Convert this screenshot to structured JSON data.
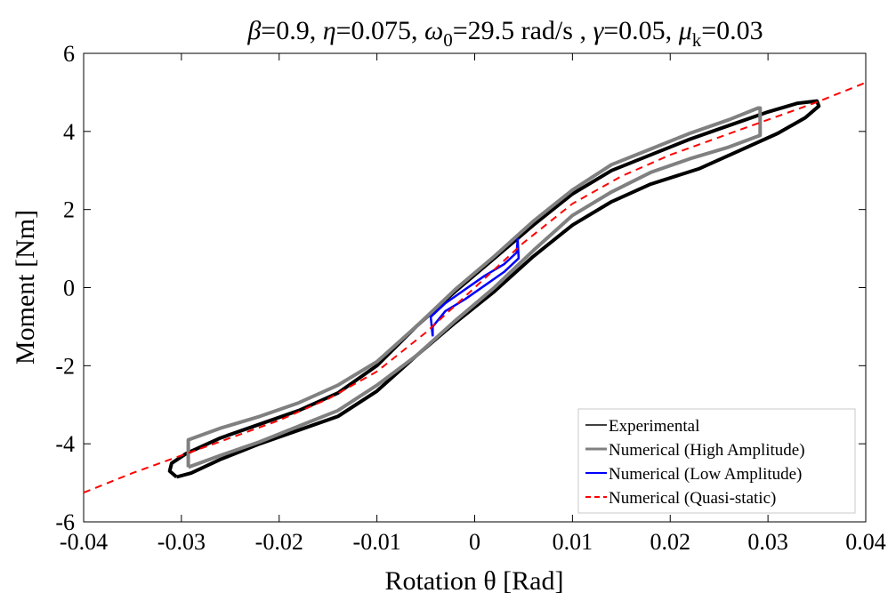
{
  "chart_data": {
    "type": "line",
    "title": "β=0.9, η=0.075, ω0=29.5 rad/s , γ=0.05, μk=0.03",
    "title_parts": [
      {
        "text": "β",
        "italic": true
      },
      {
        "text": "=0.9, "
      },
      {
        "text": "η",
        "italic": true
      },
      {
        "text": "=0.075, "
      },
      {
        "text": "ω",
        "italic": true
      },
      {
        "text": "0",
        "sub": true
      },
      {
        "text": "=29.5 rad/s , "
      },
      {
        "text": "γ",
        "italic": true
      },
      {
        "text": "=0.05, "
      },
      {
        "text": "μ",
        "italic": true
      },
      {
        "text": "k",
        "sub": true
      },
      {
        "text": "=0.03"
      }
    ],
    "xlabel": "Rotation θ [Rad]",
    "ylabel": "Moment [Nm]",
    "xlim": [
      -0.04,
      0.04
    ],
    "ylim": [
      -6,
      6
    ],
    "xticks": [
      -0.04,
      -0.03,
      -0.02,
      -0.01,
      0,
      0.01,
      0.02,
      0.03,
      0.04
    ],
    "xtick_labels": [
      "-0.04",
      "-0.03",
      "-0.02",
      "-0.01",
      "0",
      "0.01",
      "0.02",
      "0.03",
      "0.04"
    ],
    "yticks": [
      -6,
      -4,
      -2,
      0,
      2,
      4,
      6
    ],
    "ytick_labels": [
      "-6",
      "-4",
      "-2",
      "0",
      "2",
      "4",
      "6"
    ],
    "grid": false,
    "legend_position": "bottom-right",
    "series": [
      {
        "name": "Experimental",
        "color": "#000000",
        "style": "solid",
        "points": [
          [
            -0.0305,
            -4.85
          ],
          [
            -0.0312,
            -4.7
          ],
          [
            -0.031,
            -4.5
          ],
          [
            -0.0295,
            -4.25
          ],
          [
            -0.026,
            -3.85
          ],
          [
            -0.022,
            -3.5
          ],
          [
            -0.018,
            -3.15
          ],
          [
            -0.014,
            -2.7
          ],
          [
            -0.01,
            -2.0
          ],
          [
            -0.006,
            -1.0
          ],
          [
            -0.002,
            -0.1
          ],
          [
            0.002,
            0.75
          ],
          [
            0.006,
            1.6
          ],
          [
            0.01,
            2.4
          ],
          [
            0.014,
            3.0
          ],
          [
            0.018,
            3.4
          ],
          [
            0.022,
            3.8
          ],
          [
            0.026,
            4.15
          ],
          [
            0.03,
            4.5
          ],
          [
            0.033,
            4.72
          ],
          [
            0.035,
            4.78
          ],
          [
            0.0352,
            4.65
          ],
          [
            0.0338,
            4.35
          ],
          [
            0.031,
            3.95
          ],
          [
            0.027,
            3.5
          ],
          [
            0.023,
            3.05
          ],
          [
            0.018,
            2.65
          ],
          [
            0.014,
            2.2
          ],
          [
            0.01,
            1.6
          ],
          [
            0.006,
            0.8
          ],
          [
            0.002,
            -0.1
          ],
          [
            -0.002,
            -0.9
          ],
          [
            -0.006,
            -1.75
          ],
          [
            -0.01,
            -2.65
          ],
          [
            -0.014,
            -3.3
          ],
          [
            -0.018,
            -3.65
          ],
          [
            -0.022,
            -4.0
          ],
          [
            -0.026,
            -4.4
          ],
          [
            -0.029,
            -4.75
          ],
          [
            -0.0305,
            -4.85
          ]
        ]
      },
      {
        "name": "Numerical (High Amplitude)",
        "color": "#808080",
        "style": "solid",
        "points": [
          [
            -0.0293,
            -4.6
          ],
          [
            -0.0293,
            -3.9
          ],
          [
            -0.026,
            -3.6
          ],
          [
            -0.022,
            -3.3
          ],
          [
            -0.018,
            -2.95
          ],
          [
            -0.014,
            -2.5
          ],
          [
            -0.01,
            -1.9
          ],
          [
            -0.006,
            -1.0
          ],
          [
            -0.002,
            -0.05
          ],
          [
            0.002,
            0.8
          ],
          [
            0.006,
            1.7
          ],
          [
            0.01,
            2.5
          ],
          [
            0.014,
            3.15
          ],
          [
            0.018,
            3.55
          ],
          [
            0.022,
            3.95
          ],
          [
            0.026,
            4.3
          ],
          [
            0.029,
            4.6
          ],
          [
            0.0292,
            4.6
          ],
          [
            0.0292,
            3.9
          ],
          [
            0.026,
            3.6
          ],
          [
            0.022,
            3.3
          ],
          [
            0.018,
            2.95
          ],
          [
            0.014,
            2.45
          ],
          [
            0.01,
            1.85
          ],
          [
            0.006,
            0.95
          ],
          [
            0.002,
            0.0
          ],
          [
            -0.002,
            -0.85
          ],
          [
            -0.006,
            -1.75
          ],
          [
            -0.01,
            -2.5
          ],
          [
            -0.014,
            -3.15
          ],
          [
            -0.018,
            -3.55
          ],
          [
            -0.022,
            -3.95
          ],
          [
            -0.026,
            -4.3
          ],
          [
            -0.0293,
            -4.6
          ]
        ]
      },
      {
        "name": "Numerical (Low Amplitude)",
        "color": "#0000ff",
        "style": "solid",
        "points": [
          [
            -0.0043,
            -1.25
          ],
          [
            -0.0045,
            -0.75
          ],
          [
            -0.003,
            -0.4
          ],
          [
            -0.001,
            -0.05
          ],
          [
            0.001,
            0.3
          ],
          [
            0.003,
            0.6
          ],
          [
            0.0043,
            0.9
          ],
          [
            0.0044,
            1.25
          ],
          [
            0.0045,
            0.75
          ],
          [
            0.003,
            0.4
          ],
          [
            0.001,
            0.05
          ],
          [
            -0.001,
            -0.3
          ],
          [
            -0.003,
            -0.6
          ],
          [
            -0.0043,
            -1.0
          ],
          [
            -0.0043,
            -1.25
          ]
        ]
      },
      {
        "name": "Numerical (Quasi-static)",
        "color": "#ff0000",
        "style": "dashed",
        "points": [
          [
            -0.04,
            -5.25
          ],
          [
            -0.035,
            -4.75
          ],
          [
            -0.03,
            -4.3
          ],
          [
            -0.025,
            -3.85
          ],
          [
            -0.02,
            -3.4
          ],
          [
            -0.015,
            -2.85
          ],
          [
            -0.01,
            -2.15
          ],
          [
            -0.005,
            -1.15
          ],
          [
            0,
            0
          ],
          [
            0.005,
            1.15
          ],
          [
            0.01,
            2.15
          ],
          [
            0.015,
            2.85
          ],
          [
            0.02,
            3.4
          ],
          [
            0.025,
            3.85
          ],
          [
            0.03,
            4.3
          ],
          [
            0.035,
            4.75
          ],
          [
            0.04,
            5.25
          ]
        ]
      }
    ]
  }
}
